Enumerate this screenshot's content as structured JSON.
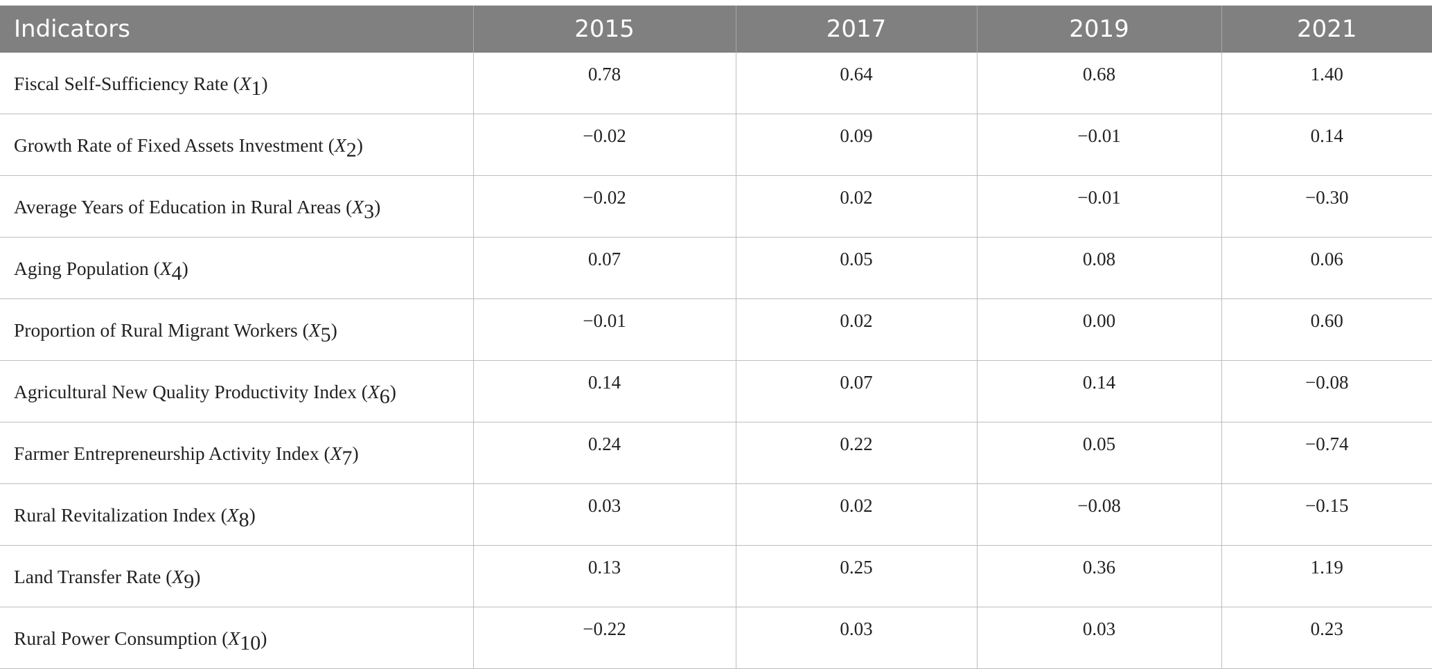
{
  "table": {
    "headers": [
      "Indicators",
      "2015",
      "2017",
      "2019",
      "2021"
    ],
    "rows": [
      {
        "label": "Fiscal Self-Sufficiency Rate",
        "symbol": "X",
        "sub": "1",
        "values": [
          "0.78",
          "0.64",
          "0.68",
          "1.40"
        ]
      },
      {
        "label": "Growth Rate of Fixed Assets Investment",
        "symbol": "X",
        "sub": "2",
        "values": [
          "−0.02",
          "0.09",
          "−0.01",
          "0.14"
        ]
      },
      {
        "label": "Average Years of Education in Rural Areas",
        "symbol": "X",
        "sub": "3",
        "values": [
          "−0.02",
          "0.02",
          "−0.01",
          "−0.30"
        ]
      },
      {
        "label": "Aging Population",
        "symbol": "X",
        "sub": "4",
        "values": [
          "0.07",
          "0.05",
          "0.08",
          "0.06"
        ]
      },
      {
        "label": "Proportion of Rural Migrant Workers",
        "symbol": "X",
        "sub": "5",
        "values": [
          "−0.01",
          "0.02",
          "0.00",
          "0.60"
        ]
      },
      {
        "label": "Agricultural New Quality Productivity Index",
        "symbol": "X",
        "sub": "6",
        "values": [
          "0.14",
          "0.07",
          "0.14",
          "−0.08"
        ]
      },
      {
        "label": "Farmer Entrepreneurship Activity Index",
        "symbol": "X",
        "sub": "7",
        "values": [
          "0.24",
          "0.22",
          "0.05",
          "−0.74"
        ]
      },
      {
        "label": "Rural Revitalization Index",
        "symbol": "X",
        "sub": "8",
        "values": [
          "0.03",
          "0.02",
          "−0.08",
          "−0.15"
        ]
      },
      {
        "label": "Land Transfer Rate",
        "symbol": "X",
        "sub": "9",
        "values": [
          "0.13",
          "0.25",
          "0.36",
          "1.19"
        ]
      },
      {
        "label": "Rural Power Consumption",
        "symbol": "X",
        "sub": "10",
        "values": [
          "−0.22",
          "0.03",
          "0.03",
          "0.23"
        ]
      }
    ]
  }
}
